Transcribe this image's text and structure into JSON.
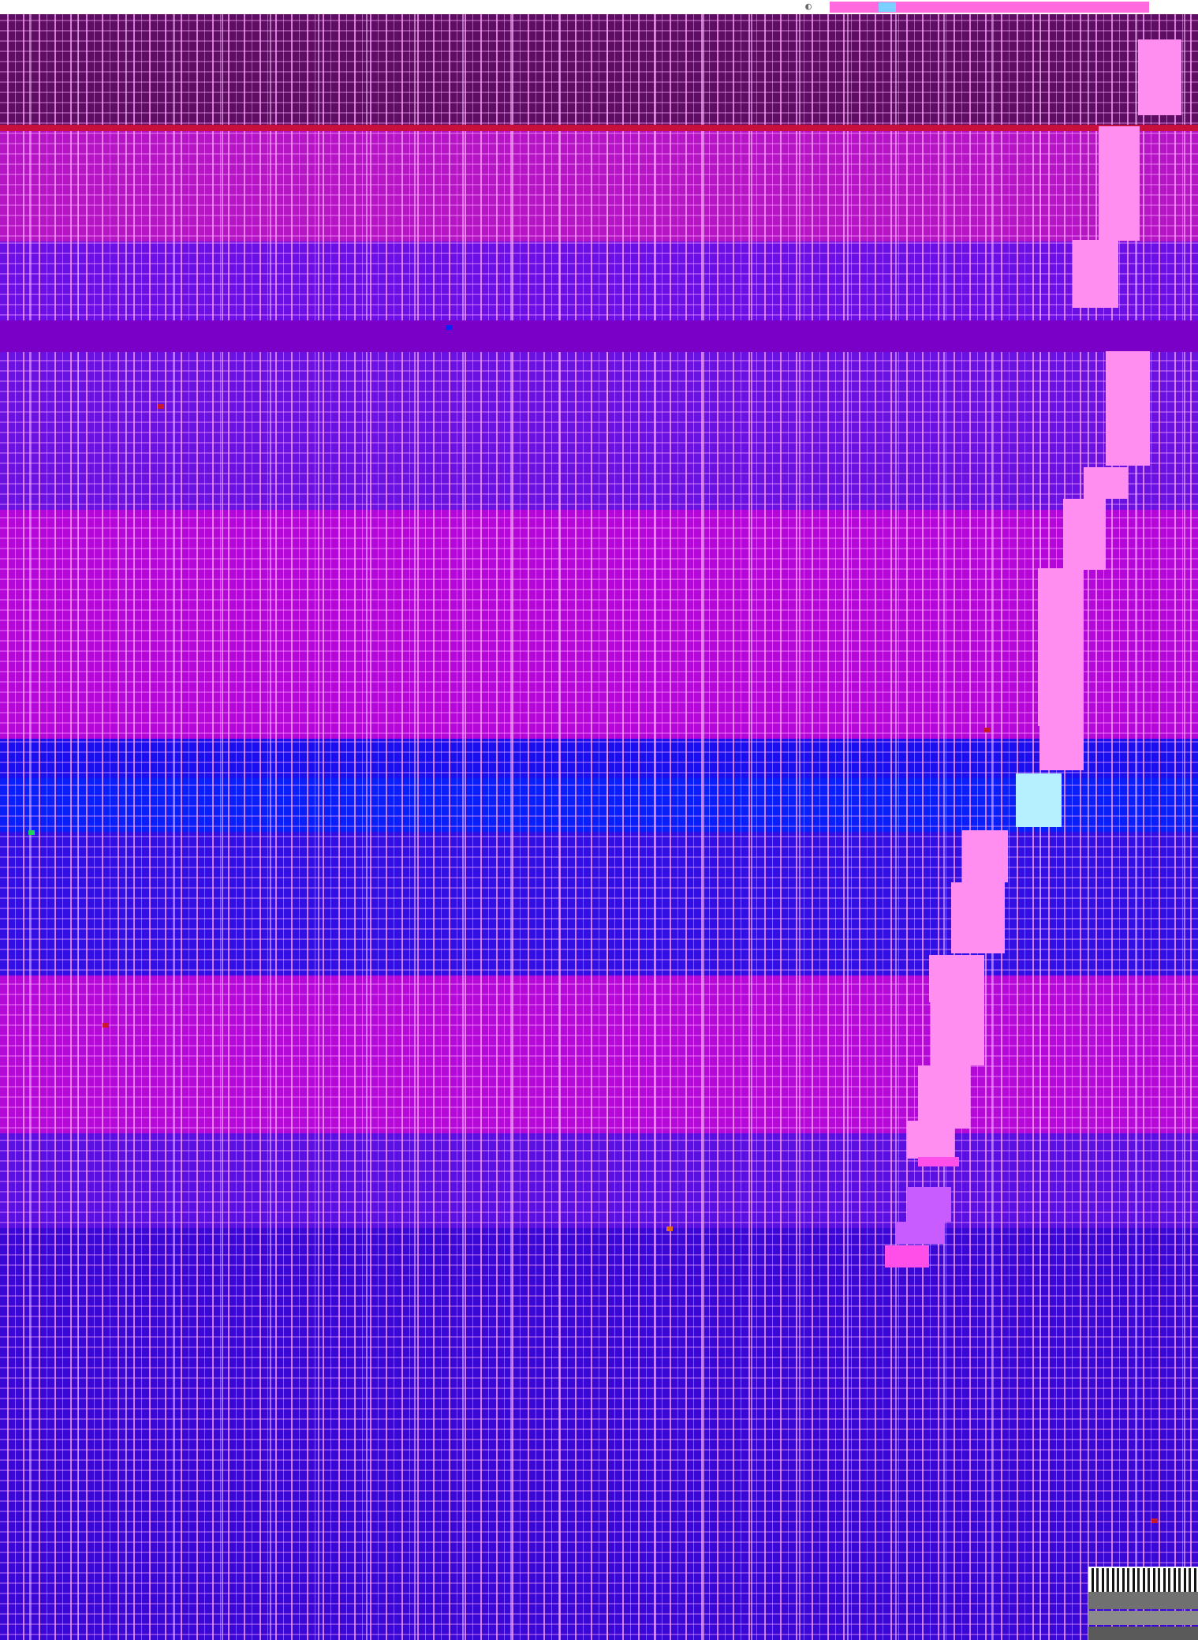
{
  "screen": {
    "description_free": true,
    "colors": {
      "topbar": "#ffffff",
      "topbar_accent": "#ff6adf",
      "slab": "#ff8ef0",
      "slab_cyan": "#b6f0ff",
      "deep_plum": "#5e0e62",
      "magenta": "#b010cc",
      "violet": "#6c10e0",
      "purple": "#8a00d6",
      "blue": "#2a10e8",
      "royal_blue": "#1010f0",
      "indigo": "#3a00c8"
    }
  },
  "bands": [
    {
      "id": "plum",
      "color": "#5e0e62"
    },
    {
      "id": "magenta-a",
      "color": "#b416c4"
    },
    {
      "id": "violet-a",
      "color": "#6a10e4"
    },
    {
      "id": "purple-strip",
      "color": "#7a00c8"
    },
    {
      "id": "violet-b",
      "color": "#6a12e0"
    },
    {
      "id": "magenta-b",
      "color": "#b408d8"
    },
    {
      "id": "royal-blue",
      "color": "#1a10ee"
    },
    {
      "id": "bright-blue",
      "color": "#0a20f8"
    },
    {
      "id": "blue-a",
      "color": "#3210e4"
    },
    {
      "id": "magenta-c",
      "color": "#b40ad8"
    },
    {
      "id": "violet-c",
      "color": "#5a10e0"
    },
    {
      "id": "indigo-bottom",
      "color": "#3a08d4"
    }
  ],
  "icons": {
    "topbar": "window-control-icon",
    "qr": "qr-code-icon"
  }
}
